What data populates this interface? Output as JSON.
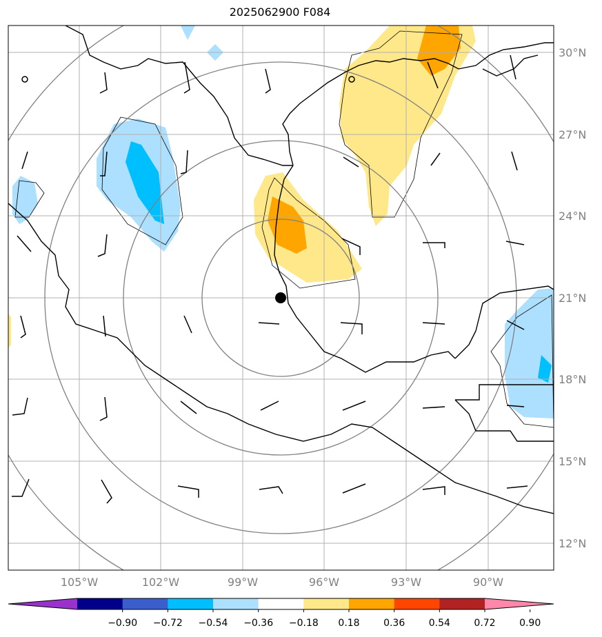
{
  "title": "2025062900 F084",
  "lat_labels": [
    "30°N",
    "27°N",
    "24°N",
    "21°N",
    "18°N",
    "15°N",
    "12°N"
  ],
  "lon_labels": [
    "105°W",
    "102°W",
    "99°W",
    "96°W",
    "93°W",
    "90°W"
  ],
  "colorbar": {
    "ticks": [
      "−0.90",
      "−0.72",
      "−0.54",
      "−0.36",
      "−0.18",
      "0.18",
      "0.36",
      "0.54",
      "0.72",
      "0.90"
    ],
    "colors": [
      "#9932cc",
      "#00008b",
      "#3a5fcd",
      "#00bfff",
      "#addfff",
      "#ffffff",
      "#ffe88a",
      "#ffa500",
      "#ff4500",
      "#b22222",
      "#ff88aa"
    ]
  },
  "storm_center": {
    "lat": 21.0,
    "lon": -97.4
  }
}
